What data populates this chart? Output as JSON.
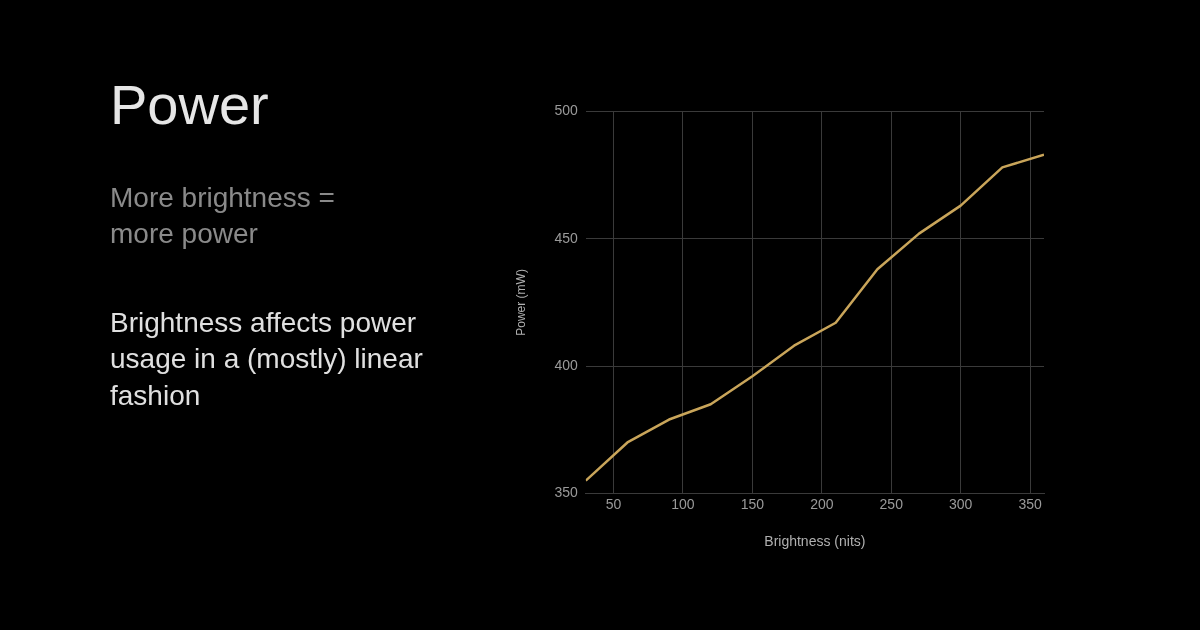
{
  "chart_data": {
    "type": "line",
    "title": "Power",
    "subtitle": "More brightness = more power",
    "annotations": [
      "Brightness affects power usage in a (mostly) linear fashion"
    ],
    "xlabel": "Brightness (nits)",
    "ylabel": "Power (mW)",
    "x": [
      30,
      60,
      90,
      120,
      150,
      180,
      210,
      240,
      270,
      300,
      330,
      360
    ],
    "series": [
      {
        "color": "#c9a55a",
        "values": [
          355,
          370,
          379,
          385,
          396,
          408,
          417,
          438,
          452,
          463,
          478,
          483
        ]
      }
    ],
    "xlim": [
      30,
      360
    ],
    "xticks": [
      50,
      100,
      150,
      200,
      250,
      300,
      350
    ],
    "ylim": [
      350,
      500
    ],
    "yticks": [
      350,
      400,
      450,
      500
    ],
    "grid": true,
    "legend": false,
    "marker": "none",
    "line_style": "solid"
  }
}
